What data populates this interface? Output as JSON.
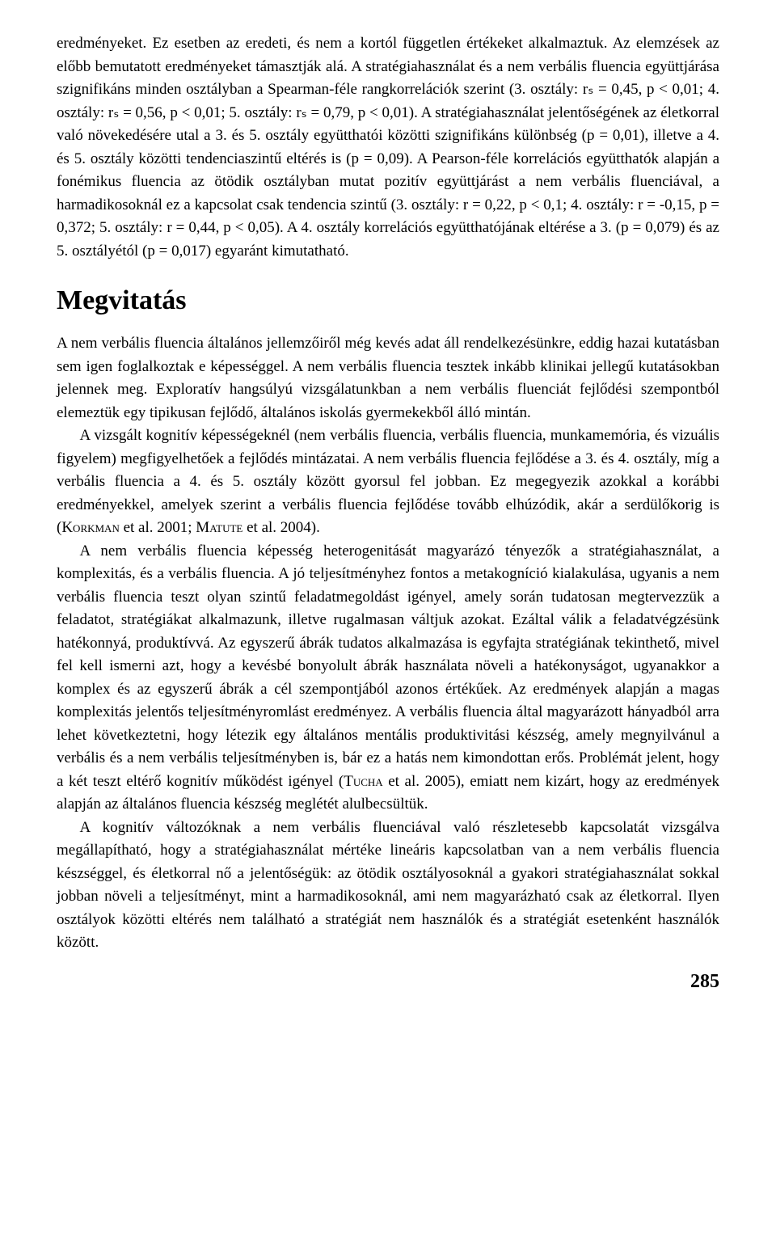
{
  "page": {
    "background_color": "#ffffff",
    "text_color": "#000000",
    "body_fontsize": 19,
    "heading_fontsize": 34,
    "page_number_fontsize": 24,
    "line_height": 1.5,
    "font_family": "Georgia, 'Times New Roman', serif"
  },
  "paragraphs": {
    "p1": "eredményeket. Ez esetben az eredeti, és nem a kortól független értékeket alkalmaztuk. Az elemzések az előbb bemutatott eredményeket támasztják alá. A stratégiahasználat és a nem verbális fluencia együttjárása szignifikáns minden osztályban a Spearman-féle rangkorrelációk szerint (3. osztály: rₛ = 0,45, p < 0,01; 4. osztály: rₛ = 0,56, p < 0,01; 5. osztály: rₛ = 0,79, p < 0,01). A stratégiahasználat jelentőségének az életkorral való növekedésére utal a 3. és 5. osztály együtthatói közötti szignifikáns különbség (p = 0,01), illetve a 4. és 5. osztály közötti tendenciaszintű eltérés is (p = 0,09). A Pearson-féle korrelációs együtthatók alapján a fonémikus fluencia az ötödik osztályban mutat pozitív együttjárást a nem verbális fluenciával, a harmadikosoknál ez a kapcsolat csak tendencia szintű (3. osztály: r = 0,22, p < 0,1; 4. osztály: r = -0,15, p = 0,372; 5. osztály: r = 0,44, p < 0,05). A 4. osztály korrelációs együtthatójának eltérése a 3. (p = 0,079) és az 5. osztályétól (p = 0,017) egyaránt kimutatható.",
    "heading": "Megvitatás",
    "p2": "A nem verbális fluencia általános jellemzőiről még kevés adat áll rendelkezésünkre, eddig hazai kutatásban sem igen foglalkoztak e képességgel. A nem verbális fluencia tesztek inkább klinikai jellegű kutatásokban jelennek meg. Exploratív hangsúlyú vizsgálatunkban a nem verbális fluenciát fejlődési szempontból elemeztük egy tipikusan fejlődő, általános iskolás gyermekekből álló mintán.",
    "p3_part1": "A vizsgált kognitív képességeknél (nem verbális fluencia, verbális fluencia, munkamemória, és vizuális figyelem) megfigyelhetőek a fejlődés mintázatai. A nem verbális fluencia fejlődése a 3. és 4. osztály, míg a verbális fluencia a 4. és 5. osztály között gyorsul fel jobban. Ez megegyezik azokkal a korábbi eredményekkel, amelyek szerint a verbális fluencia fejlődése tovább elhúzódik, akár a serdülőkorig is (",
    "p3_cite1": "Korkman",
    "p3_part2": " et al. 2001; ",
    "p3_cite2": "Matute",
    "p3_part3": " et al. 2004).",
    "p4_part1": "A nem verbális fluencia képesség heterogenitását magyarázó tényezők a stratégiahasználat, a komplexitás, és a verbális fluencia. A jó teljesítményhez fontos a metakogníció kialakulása, ugyanis a nem verbális fluencia teszt olyan szintű feladatmegoldást igényel, amely során tudatosan megtervezzük a feladatot, stratégiákat alkalmazunk, illetve rugalmasan váltjuk azokat. Ezáltal válik a feladatvégzésünk hatékonnyá, produktívvá. Az egyszerű ábrák tudatos alkalmazása is egyfajta stratégiának tekinthető, mivel fel kell ismerni azt, hogy a kevésbé bonyolult ábrák használata növeli a hatékonyságot, ugyanakkor a komplex és az egyszerű ábrák a cél szempontjából azonos értékűek. Az eredmények alapján a magas komplexitás jelentős teljesítményromlást eredményez. A verbális fluencia által magyarázott hányadból arra lehet következtetni, hogy létezik egy általános mentális produktivitási készség, amely megnyilvánul a verbális és a nem verbális teljesítményben is, bár ez a hatás nem kimondottan erős. Problémát jelent, hogy a két teszt eltérő kognitív működést igényel (",
    "p4_cite1": "Tucha",
    "p4_part2": " et al. 2005), emiatt nem kizárt, hogy az eredmények alapján az általános fluencia készség meglétét alulbecsültük.",
    "p5": "A kognitív változóknak a nem verbális fluenciával való részletesebb kapcsolatát vizsgálva megállapítható, hogy a stratégiahasználat mértéke lineáris kapcsolatban van a nem verbális fluencia készséggel, és életkorral nő a jelentőségük: az ötödik osztályosoknál a gyakori stratégiahasználat sokkal jobban növeli a teljesítményt, mint a harmadikosoknál, ami nem magyarázható csak az életkorral. Ilyen osztályok közötti eltérés nem található a stratégiát nem használók és a stratégiát esetenként használók között.",
    "page_number": "285"
  }
}
